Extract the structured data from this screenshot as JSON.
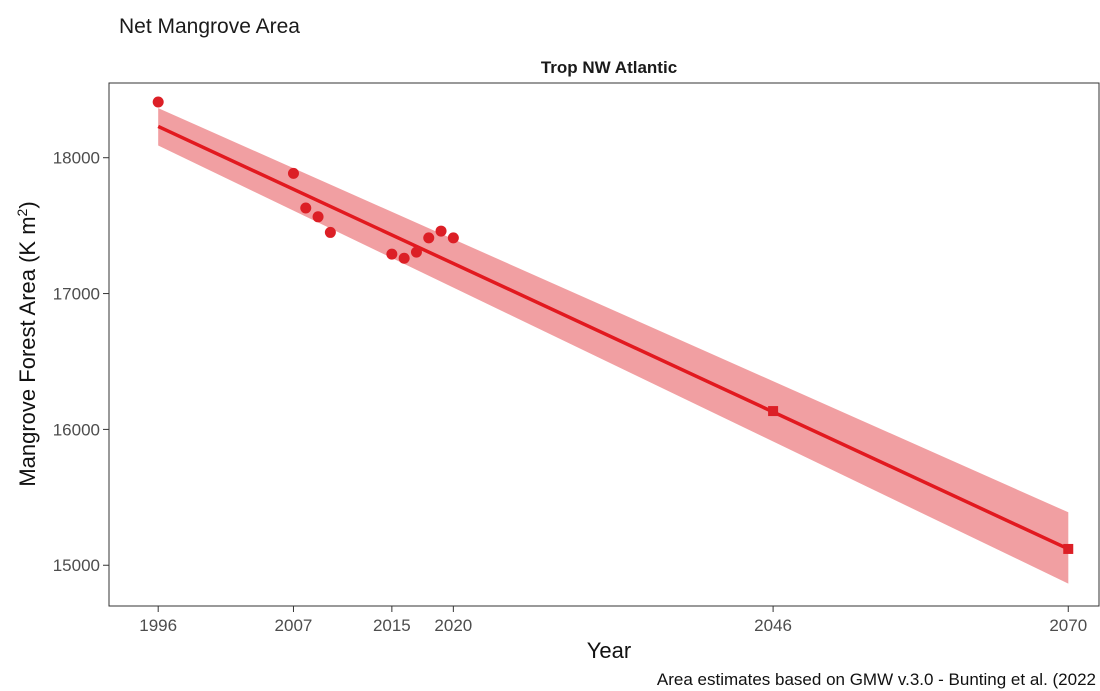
{
  "chart_data": {
    "type": "scatter",
    "subtitle": "Net Mangrove Area",
    "title": "Trop NW Atlantic",
    "xlabel": "Year",
    "ylabel": "Mangrove Forest Area (K m",
    "ylabel_superscript": "2",
    "ylabel_suffix": ")",
    "caption": "Area estimates based on GMW v.3.0 - Bunting et al. (2022",
    "xlim": [
      1992,
      2072.5
    ],
    "ylim": [
      14700,
      18550
    ],
    "x_ticks": [
      1996,
      2007,
      2015,
      2020,
      2046,
      2070
    ],
    "x_tick_labels": [
      "1996",
      "2007",
      "2015",
      "2020",
      "2046",
      "2070"
    ],
    "y_ticks": [
      15000,
      16000,
      17000,
      18000
    ],
    "y_tick_labels": [
      "15000",
      "16000",
      "17000",
      "18000"
    ],
    "grid": false,
    "colors": {
      "points": "#dc1f26",
      "line": "#e2191f",
      "ribbon": "#f19fa2"
    },
    "series": [
      {
        "marker": "circle",
        "x": [
          1996,
          2007,
          2008,
          2009,
          2010,
          2015,
          2016,
          2017,
          2018,
          2019,
          2020
        ],
        "y": [
          18410,
          17885,
          17630,
          17565,
          17450,
          17290,
          17260,
          17305,
          17410,
          17460,
          17410
        ]
      },
      {
        "marker": "square",
        "x": [
          2046,
          2070
        ],
        "y": [
          16135,
          15120
        ]
      }
    ],
    "trend": {
      "x": [
        1996,
        2070
      ],
      "y": [
        18230,
        15120
      ],
      "ci_lower": [
        18090,
        14865
      ],
      "ci_upper": [
        18365,
        15390
      ]
    }
  }
}
